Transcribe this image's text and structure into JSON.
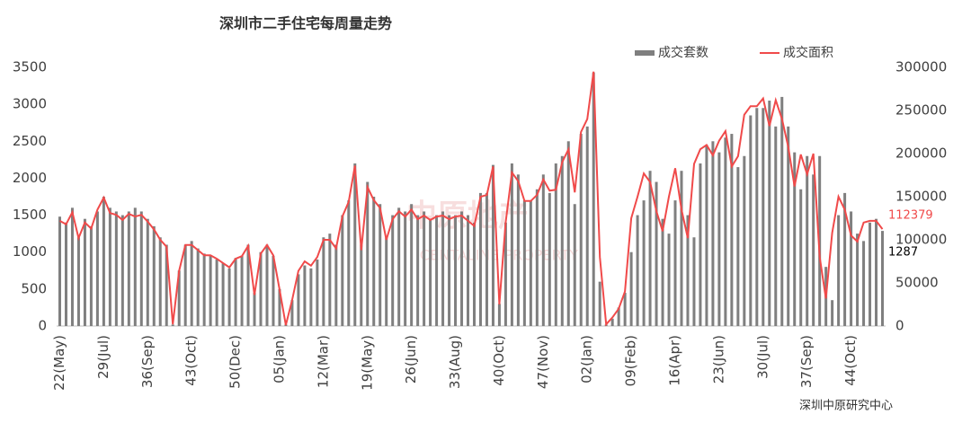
{
  "chart_data": {
    "type": "bar-line",
    "title": "深圳市二手住宅每周量走势",
    "source": "深圳中原研究中心",
    "watermark": [
      "中原地产",
      "CENTALINE PROPERTY"
    ],
    "categories": [
      "22(May)",
      null,
      null,
      null,
      null,
      null,
      null,
      "29(Jul)",
      null,
      null,
      null,
      null,
      null,
      null,
      "36(Sep)",
      null,
      null,
      null,
      null,
      null,
      null,
      "43(Oct)",
      null,
      null,
      null,
      null,
      null,
      null,
      "50(Dec)",
      null,
      null,
      null,
      null,
      null,
      null,
      "05(Jan)",
      null,
      null,
      null,
      null,
      null,
      null,
      "12(Mar)",
      null,
      null,
      null,
      null,
      null,
      null,
      "19(May)",
      null,
      null,
      null,
      null,
      null,
      null,
      "26(Jun)",
      null,
      null,
      null,
      null,
      null,
      null,
      "33(Aug)",
      null,
      null,
      null,
      null,
      null,
      null,
      "40(Oct)",
      null,
      null,
      null,
      null,
      null,
      null,
      "47(Nov)",
      null,
      null,
      null,
      null,
      null,
      null,
      "02(Jan)",
      null,
      null,
      null,
      null,
      null,
      null,
      "09(Feb)",
      null,
      null,
      null,
      null,
      null,
      null,
      "16(Apr)",
      null,
      null,
      null,
      null,
      null,
      null,
      "23(Jun)",
      null,
      null,
      null,
      null,
      null,
      null,
      "30(Jul)",
      null,
      null,
      null,
      null,
      null,
      null,
      "37(Sep)",
      null,
      null,
      null,
      null,
      null,
      null,
      "44(Oct)",
      null,
      null,
      null,
      null,
      null
    ],
    "series": [
      {
        "name": "成交套数",
        "color": "#7f7f7f",
        "kind": "bar",
        "axis": "y",
        "values": [
          1480,
          1400,
          1600,
          1200,
          1450,
          1350,
          1550,
          1750,
          1600,
          1550,
          1500,
          1550,
          1600,
          1550,
          1450,
          1350,
          1200,
          1100,
          20,
          750,
          1100,
          1150,
          1050,
          980,
          950,
          900,
          850,
          780,
          920,
          950,
          1100,
          450,
          1000,
          1100,
          950,
          500,
          20,
          350,
          700,
          820,
          780,
          900,
          1200,
          1250,
          1100,
          1500,
          1700,
          2200,
          1100,
          1950,
          1750,
          1650,
          1200,
          1500,
          1600,
          1550,
          1650,
          1500,
          1550,
          1450,
          1500,
          1550,
          1500,
          1500,
          1550,
          1500,
          1400,
          1800,
          1800,
          2180,
          300,
          1400,
          2200,
          2050,
          1700,
          1700,
          1850,
          2050,
          1800,
          2200,
          2300,
          2500,
          1650,
          2600,
          2700,
          3430,
          600,
          20,
          100,
          250,
          450,
          1000,
          1500,
          1700,
          2100,
          1950,
          1450,
          1250,
          1700,
          2100,
          1500,
          1200,
          2200,
          2450,
          2500,
          2350,
          2550,
          2600,
          2150,
          2300,
          2850,
          2950,
          2950,
          3050,
          2700,
          3100,
          2700,
          2350,
          1850,
          2300,
          2050,
          2300,
          800,
          350,
          1500,
          1800,
          1550,
          1250,
          1150,
          1400,
          1450,
          1287
        ]
      },
      {
        "name": "成交面积",
        "color": "#f04a4a",
        "kind": "line",
        "axis": "y2",
        "values": [
          122000,
          118000,
          132000,
          102000,
          120000,
          113000,
          135000,
          149000,
          131000,
          129000,
          123000,
          130000,
          127000,
          129000,
          121000,
          112000,
          100000,
          92000,
          2000,
          64000,
          94000,
          94000,
          88000,
          82000,
          82000,
          78000,
          73000,
          68000,
          78000,
          81000,
          93000,
          36000,
          84000,
          94000,
          82000,
          42000,
          1000,
          30000,
          64000,
          75000,
          70000,
          80000,
          100000,
          100000,
          90000,
          127000,
          144000,
          186000,
          88000,
          161000,
          146000,
          137000,
          100000,
          124000,
          133000,
          127000,
          135000,
          124000,
          128000,
          123000,
          127000,
          128000,
          124000,
          127000,
          128000,
          122000,
          116000,
          150000,
          152000,
          185000,
          25000,
          120000,
          178000,
          168000,
          145000,
          145000,
          152000,
          170000,
          157000,
          158000,
          190000,
          205000,
          155000,
          225000,
          240000,
          295000,
          80000,
          2000,
          10000,
          20000,
          40000,
          125000,
          150000,
          177000,
          167000,
          133000,
          110000,
          150000,
          183000,
          135000,
          102000,
          188000,
          205000,
          210000,
          198000,
          215000,
          226000,
          185000,
          197000,
          245000,
          255000,
          255000,
          264000,
          232000,
          262000,
          240000,
          208000,
          162000,
          199000,
          176000,
          200000,
          80000,
          32000,
          108000,
          150000,
          135000,
          105000,
          98000,
          120000,
          122000,
          122000,
          112379
        ]
      }
    ],
    "ylim": [
      0,
      3500
    ],
    "yticks": [
      0,
      500,
      1000,
      1500,
      2000,
      2500,
      3000,
      3500
    ],
    "y2lim": [
      0,
      300000
    ],
    "y2ticks": [
      0,
      50000,
      100000,
      150000,
      200000,
      250000,
      300000
    ],
    "grid": false
  }
}
